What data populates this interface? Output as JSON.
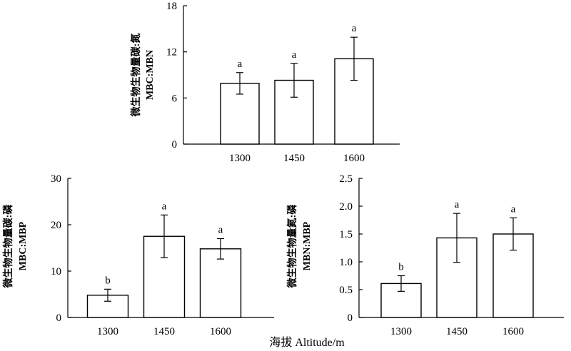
{
  "chart_data": [
    {
      "type": "bar",
      "categories": [
        "1300",
        "1450",
        "1600"
      ],
      "values": [
        7.9,
        8.3,
        11.1
      ],
      "errors": [
        1.4,
        2.2,
        2.8
      ],
      "significance": [
        "a",
        "a",
        "a"
      ],
      "ylabel_cn": "微生物生物量碳:氮",
      "ylabel_en": "MBC:MBN",
      "ylim": [
        0,
        18
      ],
      "yticks": [
        "0",
        "6",
        "12",
        "18"
      ],
      "yticks_values": [
        0,
        6,
        12,
        18
      ]
    },
    {
      "type": "bar",
      "categories": [
        "1300",
        "1450",
        "1600"
      ],
      "values": [
        4.8,
        17.5,
        14.8
      ],
      "errors": [
        1.3,
        4.6,
        2.2
      ],
      "significance": [
        "b",
        "a",
        "a"
      ],
      "ylabel_cn": "微生物生物量碳:磷",
      "ylabel_en": "MBC:MBP",
      "ylim": [
        0,
        30
      ],
      "yticks": [
        "0",
        "10",
        "20",
        "30"
      ],
      "yticks_values": [
        0,
        10,
        20,
        30
      ]
    },
    {
      "type": "bar",
      "categories": [
        "1300",
        "1450",
        "1600"
      ],
      "values": [
        0.61,
        1.43,
        1.5
      ],
      "errors": [
        0.14,
        0.44,
        0.29
      ],
      "significance": [
        "b",
        "a",
        "a"
      ],
      "ylabel_cn": "微生物生物量氮:磷",
      "ylabel_en": "MBN:MBP",
      "ylim": [
        0,
        2.5
      ],
      "yticks": [
        "0",
        "0.5",
        "1.0",
        "1.5",
        "2.0",
        "2.5"
      ],
      "yticks_values": [
        0,
        0.5,
        1.0,
        1.5,
        2.0,
        2.5
      ]
    }
  ],
  "xlabel": "海拔 Altitude/m"
}
